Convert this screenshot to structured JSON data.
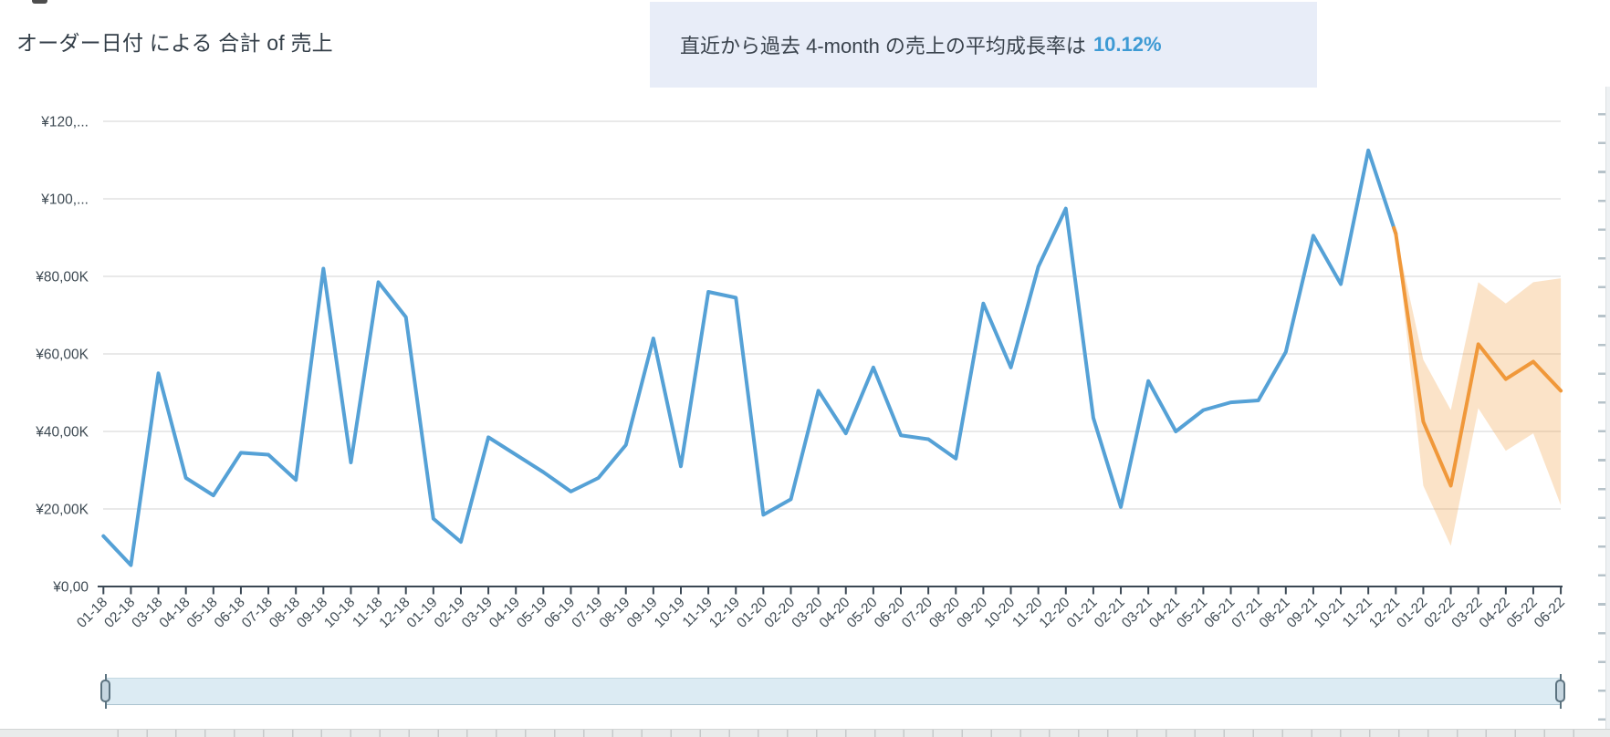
{
  "callout": {
    "text": "直近から過去 4-month の売上の平均成長率は",
    "highlight": "10.12%"
  },
  "chart_data": {
    "type": "line",
    "title": "オーダー日付 による 合計 of 売上",
    "xlabel": "",
    "ylabel": "",
    "currency": "JPY",
    "ylim_k": [
      0,
      120
    ],
    "grid": "horizontal",
    "legend": "none",
    "x_labels": [
      "01-18",
      "02-18",
      "03-18",
      "04-18",
      "05-18",
      "06-18",
      "07-18",
      "08-18",
      "09-18",
      "10-18",
      "11-18",
      "12-18",
      "01-19",
      "02-19",
      "03-19",
      "04-19",
      "05-19",
      "06-19",
      "07-19",
      "08-19",
      "09-19",
      "10-19",
      "11-19",
      "12-19",
      "01-20",
      "02-20",
      "03-20",
      "04-20",
      "05-20",
      "06-20",
      "07-20",
      "08-20",
      "09-20",
      "10-20",
      "11-20",
      "12-20",
      "01-21",
      "02-21",
      "03-21",
      "04-21",
      "05-21",
      "06-21",
      "07-21",
      "08-21",
      "09-21",
      "10-21",
      "11-21",
      "12-21",
      "01-22",
      "02-22",
      "03-22",
      "04-22",
      "05-22",
      "06-22"
    ],
    "values_k": [
      13,
      5.5,
      55,
      28,
      23.5,
      34.5,
      34,
      27.5,
      82,
      32,
      78.5,
      69.5,
      17.5,
      11.5,
      38.5,
      34,
      29.5,
      24.5,
      28,
      36.5,
      64,
      31,
      76,
      74.5,
      18.5,
      22.5,
      50.5,
      39.5,
      56.5,
      39,
      38,
      33,
      73,
      56.5,
      82.5,
      97.5,
      43.5,
      20.5,
      53,
      40,
      45.5,
      47.5,
      48,
      60.5,
      90.5,
      78,
      112.5,
      91,
      42.5,
      26,
      62.5,
      53.5,
      58,
      50.5
    ],
    "forecast_start_index": 47,
    "forecast_band": {
      "start_index": 47,
      "lower_k": [
        91,
        26,
        10.5,
        46,
        35,
        39.5,
        21
      ],
      "upper_k": [
        91,
        58.5,
        45.5,
        78.5,
        73,
        78.5,
        79.5
      ]
    },
    "y_axis_ticks": [
      {
        "value_k": 0,
        "label": "¥0,00"
      },
      {
        "value_k": 20,
        "label": "¥20,00K"
      },
      {
        "value_k": 40,
        "label": "¥40,00K"
      },
      {
        "value_k": 60,
        "label": "¥60,00K"
      },
      {
        "value_k": 80,
        "label": "¥80,00K"
      },
      {
        "value_k": 100,
        "label": "¥100,..."
      },
      {
        "value_k": 120,
        "label": "¥120,..."
      }
    ],
    "colors": {
      "actual_line": "#55a1d6",
      "forecast_line": "#f0983a",
      "forecast_band_fill": "#f09b38",
      "gridline": "#e2e2e2",
      "axis": "#3b4854",
      "axis_text": "#3e4a53",
      "callout_bg": "#e8edf8",
      "callout_accent": "#3d9ad4"
    }
  }
}
